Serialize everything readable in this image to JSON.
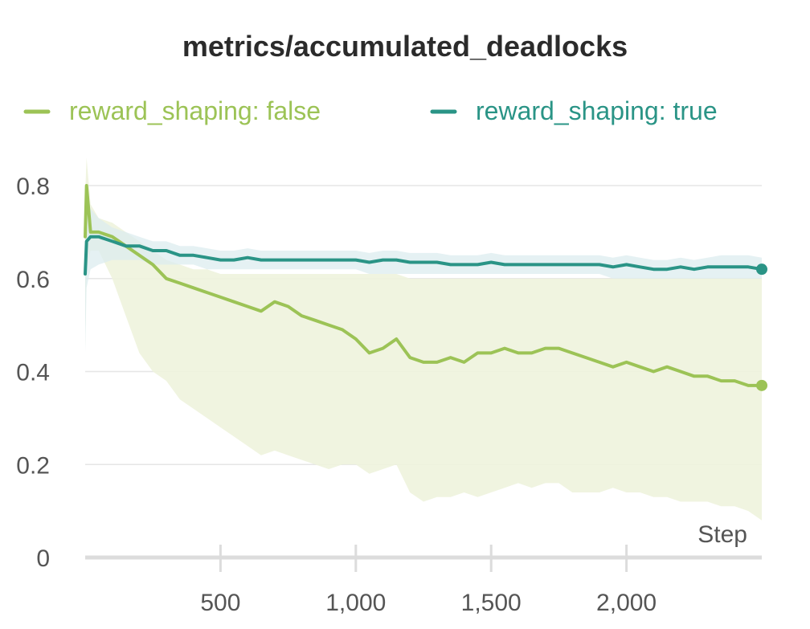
{
  "chart_data": {
    "type": "line",
    "title": "metrics/accumulated_deadlocks",
    "xlabel": "Step",
    "ylabel": "",
    "xlim": [
      0,
      2500
    ],
    "ylim": [
      0,
      0.8
    ],
    "x_ticks": [
      500,
      1000,
      1500,
      2000
    ],
    "x_tick_labels": [
      "500",
      "1,000",
      "1,500",
      "2,000"
    ],
    "y_ticks": [
      0,
      0.2,
      0.4,
      0.6,
      0.8
    ],
    "y_tick_labels": [
      "0",
      "0.2",
      "0.4",
      "0.6",
      "0.8"
    ],
    "grid": true,
    "legend_position": "top",
    "series": [
      {
        "name": "reward_shaping: false",
        "label": "reward_shaping: false",
        "color": "#9cc356",
        "band_color": "#eef3dd",
        "x": [
          0,
          5,
          20,
          50,
          100,
          150,
          200,
          250,
          300,
          350,
          400,
          450,
          500,
          550,
          600,
          650,
          700,
          750,
          800,
          850,
          900,
          950,
          1000,
          1050,
          1100,
          1150,
          1200,
          1250,
          1300,
          1350,
          1400,
          1450,
          1500,
          1550,
          1600,
          1650,
          1700,
          1750,
          1800,
          1850,
          1900,
          1950,
          2000,
          2050,
          2100,
          2150,
          2200,
          2250,
          2300,
          2350,
          2400,
          2450,
          2500
        ],
        "values": [
          0.69,
          0.8,
          0.7,
          0.7,
          0.69,
          0.67,
          0.65,
          0.63,
          0.6,
          0.59,
          0.58,
          0.57,
          0.56,
          0.55,
          0.54,
          0.53,
          0.55,
          0.54,
          0.52,
          0.51,
          0.5,
          0.49,
          0.47,
          0.44,
          0.45,
          0.47,
          0.43,
          0.42,
          0.42,
          0.43,
          0.42,
          0.44,
          0.44,
          0.45,
          0.44,
          0.44,
          0.45,
          0.45,
          0.44,
          0.43,
          0.42,
          0.41,
          0.42,
          0.41,
          0.4,
          0.41,
          0.4,
          0.39,
          0.39,
          0.38,
          0.38,
          0.37,
          0.37
        ],
        "lower": [
          0.45,
          0.62,
          0.66,
          0.66,
          0.6,
          0.52,
          0.44,
          0.4,
          0.38,
          0.34,
          0.32,
          0.3,
          0.28,
          0.26,
          0.24,
          0.22,
          0.23,
          0.22,
          0.21,
          0.2,
          0.19,
          0.2,
          0.2,
          0.18,
          0.19,
          0.2,
          0.14,
          0.12,
          0.13,
          0.13,
          0.14,
          0.13,
          0.14,
          0.15,
          0.16,
          0.15,
          0.16,
          0.16,
          0.14,
          0.14,
          0.14,
          0.15,
          0.14,
          0.14,
          0.13,
          0.13,
          0.12,
          0.12,
          0.12,
          0.11,
          0.11,
          0.1,
          0.08
        ],
        "upper": [
          0.78,
          0.86,
          0.76,
          0.73,
          0.72,
          0.7,
          0.68,
          0.66,
          0.64,
          0.63,
          0.62,
          0.62,
          0.61,
          0.61,
          0.61,
          0.61,
          0.61,
          0.61,
          0.61,
          0.61,
          0.61,
          0.61,
          0.61,
          0.61,
          0.61,
          0.61,
          0.6,
          0.6,
          0.6,
          0.6,
          0.6,
          0.6,
          0.6,
          0.6,
          0.6,
          0.6,
          0.6,
          0.6,
          0.6,
          0.6,
          0.6,
          0.6,
          0.6,
          0.6,
          0.6,
          0.6,
          0.6,
          0.6,
          0.6,
          0.6,
          0.6,
          0.6,
          0.6
        ]
      },
      {
        "name": "reward_shaping: true",
        "label": "reward_shaping: true",
        "color": "#2a9486",
        "band_color": "#dcecef",
        "x": [
          0,
          5,
          20,
          50,
          100,
          150,
          200,
          250,
          300,
          350,
          400,
          450,
          500,
          550,
          600,
          650,
          700,
          750,
          800,
          850,
          900,
          950,
          1000,
          1050,
          1100,
          1150,
          1200,
          1250,
          1300,
          1350,
          1400,
          1450,
          1500,
          1550,
          1600,
          1650,
          1700,
          1750,
          1800,
          1850,
          1900,
          1950,
          2000,
          2050,
          2100,
          2150,
          2200,
          2250,
          2300,
          2350,
          2400,
          2450,
          2500
        ],
        "values": [
          0.61,
          0.68,
          0.69,
          0.69,
          0.68,
          0.67,
          0.67,
          0.66,
          0.66,
          0.65,
          0.65,
          0.645,
          0.64,
          0.64,
          0.645,
          0.64,
          0.64,
          0.64,
          0.64,
          0.64,
          0.64,
          0.64,
          0.64,
          0.635,
          0.64,
          0.64,
          0.635,
          0.635,
          0.635,
          0.63,
          0.63,
          0.63,
          0.635,
          0.63,
          0.63,
          0.63,
          0.63,
          0.63,
          0.63,
          0.63,
          0.63,
          0.625,
          0.63,
          0.625,
          0.62,
          0.62,
          0.625,
          0.62,
          0.625,
          0.625,
          0.625,
          0.625,
          0.62
        ],
        "lower": [
          0.44,
          0.58,
          0.62,
          0.63,
          0.64,
          0.64,
          0.64,
          0.63,
          0.63,
          0.63,
          0.63,
          0.62,
          0.62,
          0.62,
          0.62,
          0.62,
          0.62,
          0.62,
          0.62,
          0.62,
          0.62,
          0.62,
          0.62,
          0.61,
          0.61,
          0.61,
          0.61,
          0.61,
          0.61,
          0.61,
          0.61,
          0.61,
          0.61,
          0.61,
          0.61,
          0.61,
          0.61,
          0.61,
          0.61,
          0.61,
          0.61,
          0.6,
          0.6,
          0.6,
          0.6,
          0.6,
          0.6,
          0.6,
          0.6,
          0.6,
          0.6,
          0.6,
          0.6
        ],
        "upper": [
          0.78,
          0.8,
          0.75,
          0.73,
          0.71,
          0.7,
          0.69,
          0.68,
          0.68,
          0.67,
          0.67,
          0.665,
          0.66,
          0.66,
          0.665,
          0.66,
          0.66,
          0.66,
          0.66,
          0.66,
          0.66,
          0.66,
          0.66,
          0.655,
          0.66,
          0.66,
          0.655,
          0.655,
          0.655,
          0.65,
          0.65,
          0.65,
          0.655,
          0.65,
          0.65,
          0.65,
          0.65,
          0.65,
          0.65,
          0.65,
          0.65,
          0.645,
          0.65,
          0.645,
          0.64,
          0.64,
          0.645,
          0.64,
          0.645,
          0.65,
          0.65,
          0.65,
          0.645
        ]
      }
    ]
  }
}
